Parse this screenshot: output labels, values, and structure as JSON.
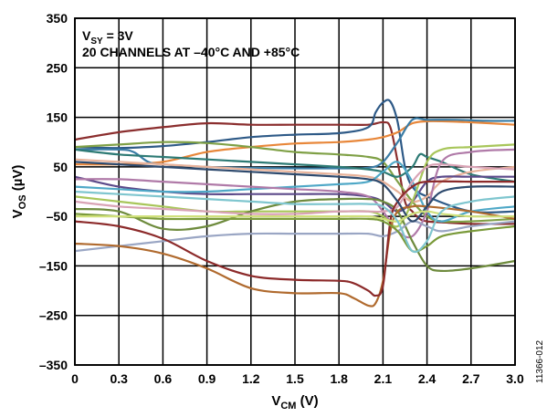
{
  "chart_data": {
    "type": "line",
    "xlabel": {
      "main": "V",
      "sub": "CM",
      "unit": " (V)"
    },
    "ylabel": {
      "main": "V",
      "sub": "OS",
      "unit": " (µV)"
    },
    "xlim": [
      0,
      3.0
    ],
    "ylim": [
      -350,
      350
    ],
    "x_ticks": [
      "0",
      "0.3",
      "0.6",
      "0.9",
      "1.2",
      "1.5",
      "1.8",
      "2.1",
      "2.4",
      "2.7",
      "3.0"
    ],
    "y_ticks": [
      "350",
      "250",
      "150",
      "50",
      "–50",
      "–150",
      "–250",
      "–350"
    ],
    "x_tick_values": [
      0,
      0.3,
      0.6,
      0.9,
      1.2,
      1.5,
      1.8,
      2.1,
      2.4,
      2.7,
      3.0
    ],
    "y_tick_values": [
      350,
      250,
      150,
      50,
      -50,
      -150,
      -250,
      -350
    ],
    "grid": true,
    "annotations": {
      "line1_main": "V",
      "line1_sub": "SY",
      "line1_rest": " = 3V",
      "line2": "20 CHANNELS AT –40°C AND +85°C"
    },
    "figure_id": "11366-012",
    "series": [
      {
        "color": "#8b2e2e",
        "x": [
          0,
          0.3,
          0.6,
          0.9,
          1.2,
          1.5,
          1.8,
          2.0,
          2.1,
          2.15,
          2.2,
          2.25,
          2.3,
          2.35,
          2.4,
          2.5,
          2.7,
          3.0
        ],
        "y": [
          105,
          120,
          130,
          138,
          135,
          135,
          135,
          135,
          140,
          130,
          60,
          -20,
          -40,
          -55,
          -60,
          -62,
          -65,
          -65
        ]
      },
      {
        "color": "#2e5a87",
        "x": [
          0,
          0.3,
          0.6,
          0.9,
          1.2,
          1.5,
          1.8,
          2.0,
          2.05,
          2.1,
          2.15,
          2.2,
          2.25,
          2.3,
          2.4,
          2.7,
          3.0
        ],
        "y": [
          90,
          88,
          92,
          100,
          110,
          115,
          118,
          130,
          160,
          180,
          182,
          140,
          50,
          10,
          -10,
          -40,
          -40
        ]
      },
      {
        "color": "#e8873a",
        "x": [
          0,
          0.3,
          0.6,
          0.9,
          1.2,
          1.5,
          1.8,
          2.0,
          2.1,
          2.2,
          2.3,
          2.4,
          2.5,
          2.7,
          3.0
        ],
        "y": [
          55,
          55,
          60,
          80,
          90,
          97,
          100,
          105,
          110,
          120,
          138,
          142,
          142,
          140,
          135
        ]
      },
      {
        "color": "#7fa046",
        "x": [
          0,
          0.3,
          0.6,
          0.9,
          1.2,
          1.5,
          1.8,
          2.0,
          2.1,
          2.2,
          2.3,
          2.4,
          2.5,
          2.7,
          3.0
        ],
        "y": [
          90,
          95,
          100,
          98,
          90,
          80,
          75,
          70,
          60,
          20,
          -20,
          -50,
          -60,
          -60,
          -55
        ]
      },
      {
        "color": "#3a7ca5",
        "x": [
          0,
          0.3,
          0.4,
          0.5,
          0.6,
          0.9,
          1.2,
          1.5,
          1.8,
          2.0,
          2.1,
          2.2,
          2.3,
          2.4,
          2.6,
          2.8,
          3.0
        ],
        "y": [
          85,
          85,
          80,
          60,
          55,
          50,
          48,
          47,
          47,
          48,
          60,
          100,
          145,
          145,
          145,
          143,
          143
        ]
      },
      {
        "color": "#2d7a74",
        "x": [
          0,
          0.3,
          0.6,
          0.9,
          1.2,
          1.5,
          1.8,
          2.0,
          2.1,
          2.2,
          2.3,
          2.35,
          2.4,
          2.5,
          2.7,
          3.0
        ],
        "y": [
          85,
          75,
          70,
          65,
          60,
          55,
          50,
          45,
          40,
          30,
          50,
          75,
          70,
          60,
          35,
          20
        ]
      },
      {
        "color": "#e8b29a",
        "x": [
          0,
          0.3,
          0.6,
          0.9,
          1.2,
          1.5,
          1.8,
          2.0,
          2.1,
          2.2,
          2.3,
          2.4,
          2.5,
          2.7,
          3.0
        ],
        "y": [
          65,
          60,
          55,
          50,
          45,
          40,
          35,
          30,
          20,
          0,
          -20,
          -10,
          20,
          40,
          50
        ]
      },
      {
        "color": "#5c4a8a",
        "x": [
          0,
          0.3,
          0.6,
          0.9,
          1.2,
          1.5,
          1.8,
          2.0,
          2.1,
          2.2,
          2.3,
          2.4,
          2.5,
          2.7,
          3.0
        ],
        "y": [
          30,
          10,
          0,
          -5,
          -5,
          -5,
          -5,
          -10,
          -20,
          -40,
          -20,
          20,
          30,
          30,
          30
        ]
      },
      {
        "color": "#4fa8c7",
        "x": [
          0,
          0.3,
          0.6,
          0.9,
          1.2,
          1.5,
          1.8,
          2.0,
          2.1,
          2.2,
          2.3,
          2.4,
          2.5,
          2.7,
          3.0
        ],
        "y": [
          10,
          5,
          0,
          0,
          5,
          10,
          15,
          20,
          40,
          60,
          20,
          -40,
          -60,
          -40,
          -30
        ]
      },
      {
        "color": "#b07aa8",
        "x": [
          0,
          0.3,
          0.6,
          0.9,
          1.2,
          1.5,
          1.8,
          2.0,
          2.1,
          2.2,
          2.3,
          2.4,
          2.5,
          2.7,
          3.0
        ],
        "y": [
          25,
          25,
          20,
          15,
          10,
          5,
          0,
          -10,
          -40,
          -80,
          -90,
          -40,
          60,
          80,
          85
        ]
      },
      {
        "color": "#a8c65a",
        "x": [
          0,
          0.3,
          0.6,
          0.9,
          1.2,
          1.5,
          1.8,
          2.0,
          2.1,
          2.2,
          2.3,
          2.4,
          2.5,
          2.7,
          3.0
        ],
        "y": [
          -10,
          -20,
          -30,
          -40,
          -40,
          -40,
          -40,
          -40,
          -50,
          -70,
          -20,
          60,
          85,
          90,
          95
        ]
      },
      {
        "color": "#6e8b3d",
        "x": [
          0,
          0.3,
          0.6,
          0.9,
          1.2,
          1.5,
          1.8,
          2.0,
          2.1,
          2.2,
          2.3,
          2.4,
          2.5,
          2.7,
          3.0
        ],
        "y": [
          -35,
          -40,
          -75,
          -70,
          -40,
          -20,
          -15,
          -15,
          -20,
          -40,
          -100,
          -150,
          -160,
          -155,
          -140
        ]
      },
      {
        "color": "#d9a3b5",
        "x": [
          0,
          0.3,
          0.6,
          0.9,
          1.2,
          1.5,
          1.8,
          2.0,
          2.1,
          2.2,
          2.3,
          2.4,
          2.5,
          2.7,
          3.0
        ],
        "y": [
          -20,
          -30,
          -35,
          -40,
          -45,
          -45,
          -40,
          -40,
          -40,
          -30,
          20,
          50,
          55,
          50,
          45
        ]
      },
      {
        "color": "#9aa6c4",
        "x": [
          0,
          0.3,
          0.6,
          0.9,
          1.2,
          1.5,
          1.8,
          2.0,
          2.1,
          2.2,
          2.3,
          2.4,
          2.5,
          2.7,
          3.0
        ],
        "y": [
          -120,
          -110,
          -100,
          -90,
          -85,
          -85,
          -85,
          -85,
          -90,
          -80,
          -60,
          -70,
          -80,
          -70,
          -60
        ]
      },
      {
        "color": "#b06a2e",
        "x": [
          0,
          0.3,
          0.6,
          0.9,
          1.2,
          1.5,
          1.8,
          1.9,
          2.0,
          2.05,
          2.1,
          2.15,
          2.2,
          2.3,
          2.4,
          2.7,
          3.0
        ],
        "y": [
          -105,
          -110,
          -125,
          -155,
          -195,
          -205,
          -205,
          -215,
          -230,
          -225,
          -180,
          -80,
          -40,
          -30,
          -30,
          -40,
          -55
        ]
      },
      {
        "color": "#8c2a2a",
        "x": [
          0,
          0.3,
          0.6,
          0.9,
          1.2,
          1.5,
          1.8,
          1.9,
          2.0,
          2.05,
          2.1,
          2.15,
          2.2,
          2.3,
          2.4,
          2.7,
          3.0
        ],
        "y": [
          -60,
          -70,
          -95,
          -140,
          -170,
          -178,
          -180,
          -185,
          -200,
          -210,
          -190,
          -60,
          -20,
          10,
          20,
          20,
          20
        ]
      },
      {
        "color": "#7a9a3a",
        "x": [
          0,
          0.3,
          0.6,
          0.9,
          1.2,
          1.5,
          1.8,
          2.0,
          2.1,
          2.2,
          2.3,
          2.4,
          2.5,
          2.7,
          3.0
        ],
        "y": [
          -45,
          -50,
          -55,
          -55,
          -55,
          -55,
          -55,
          -55,
          -60,
          -80,
          -120,
          -110,
          -90,
          -80,
          -70
        ]
      },
      {
        "color": "#2e4a6e",
        "x": [
          0,
          0.3,
          0.6,
          0.9,
          1.2,
          1.5,
          1.8,
          2.0,
          2.1,
          2.2,
          2.3,
          2.4,
          2.5,
          2.7,
          3.0
        ],
        "y": [
          60,
          55,
          50,
          45,
          40,
          35,
          30,
          25,
          15,
          -20,
          -60,
          -30,
          0,
          10,
          10
        ]
      },
      {
        "color": "#cfe07a",
        "x": [
          0,
          0.3,
          0.6,
          0.9,
          1.2,
          1.5,
          1.8,
          2.0,
          2.1,
          2.2,
          2.3,
          2.4,
          2.5,
          2.7,
          3.0
        ],
        "y": [
          -50,
          -50,
          -50,
          -50,
          -50,
          -50,
          -50,
          -50,
          -55,
          -60,
          -45,
          -40,
          -45,
          -50,
          -50
        ]
      },
      {
        "color": "#7fc6cf",
        "x": [
          0,
          0.3,
          0.6,
          0.9,
          1.2,
          1.5,
          1.8,
          2.0,
          2.1,
          2.2,
          2.3,
          2.4,
          2.5,
          2.7,
          3.0
        ],
        "y": [
          0,
          -5,
          -10,
          -15,
          -20,
          -25,
          -25,
          -25,
          -30,
          -60,
          -120,
          -100,
          -40,
          -20,
          -10
        ]
      }
    ]
  }
}
